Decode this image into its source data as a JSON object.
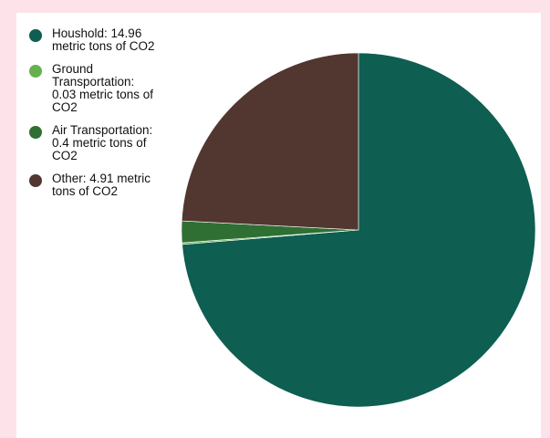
{
  "chart_data": {
    "type": "pie",
    "slices": [
      {
        "label": "Houshold: 14.96 metric tons of CO2",
        "name": "Houshold",
        "value": 14.96,
        "color": "#0e5e51"
      },
      {
        "label": "Ground Transportation: 0.03 metric tons of CO2",
        "name": "Ground Transportation",
        "value": 0.03,
        "color": "#67b050"
      },
      {
        "label": "Air Transportation: 0.4 metric tons of CO2",
        "name": "Air Transportation",
        "value": 0.4,
        "color": "#2f6f34"
      },
      {
        "label": "Other: 4.91 metric tons of CO2",
        "name": "Other",
        "value": 4.91,
        "color": "#523630"
      }
    ],
    "legend_position": "left"
  },
  "colors": {
    "page_background": "#fde2ea",
    "panel_background": "#ffffff"
  }
}
